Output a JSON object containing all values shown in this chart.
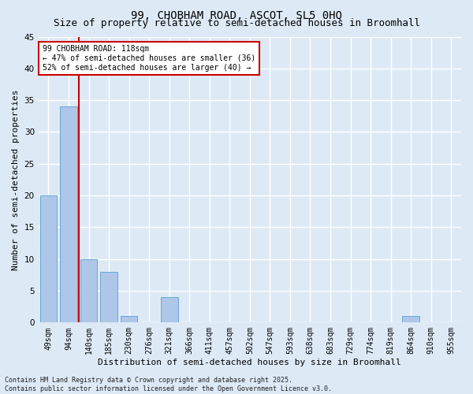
{
  "title1": "99, CHOBHAM ROAD, ASCOT, SL5 0HQ",
  "title2": "Size of property relative to semi-detached houses in Broomhall",
  "xlabel": "Distribution of semi-detached houses by size in Broomhall",
  "ylabel": "Number of semi-detached properties",
  "categories": [
    "49sqm",
    "94sqm",
    "140sqm",
    "185sqm",
    "230sqm",
    "276sqm",
    "321sqm",
    "366sqm",
    "411sqm",
    "457sqm",
    "502sqm",
    "547sqm",
    "593sqm",
    "638sqm",
    "683sqm",
    "729sqm",
    "774sqm",
    "819sqm",
    "864sqm",
    "910sqm",
    "955sqm"
  ],
  "values": [
    20,
    34,
    10,
    8,
    1,
    0,
    4,
    0,
    0,
    0,
    0,
    0,
    0,
    0,
    0,
    0,
    0,
    0,
    1,
    0,
    0
  ],
  "bar_color": "#aec6e8",
  "bar_edge_color": "#5a9fd4",
  "vline_x": 1.5,
  "vline_color": "#cc0000",
  "annotation_text": "99 CHOBHAM ROAD: 118sqm\n← 47% of semi-detached houses are smaller (36)\n52% of semi-detached houses are larger (40) →",
  "annotation_box_color": "#ffffff",
  "annotation_box_edge": "#cc0000",
  "ylim": [
    0,
    45
  ],
  "yticks": [
    0,
    5,
    10,
    15,
    20,
    25,
    30,
    35,
    40,
    45
  ],
  "footer": "Contains HM Land Registry data © Crown copyright and database right 2025.\nContains public sector information licensed under the Open Government Licence v3.0.",
  "bg_color": "#ddeaf6",
  "grid_color": "#ffffff",
  "title_fontsize": 10,
  "subtitle_fontsize": 9,
  "tick_fontsize": 7,
  "ylabel_fontsize": 8,
  "xlabel_fontsize": 8,
  "annot_fontsize": 7,
  "footer_fontsize": 6
}
